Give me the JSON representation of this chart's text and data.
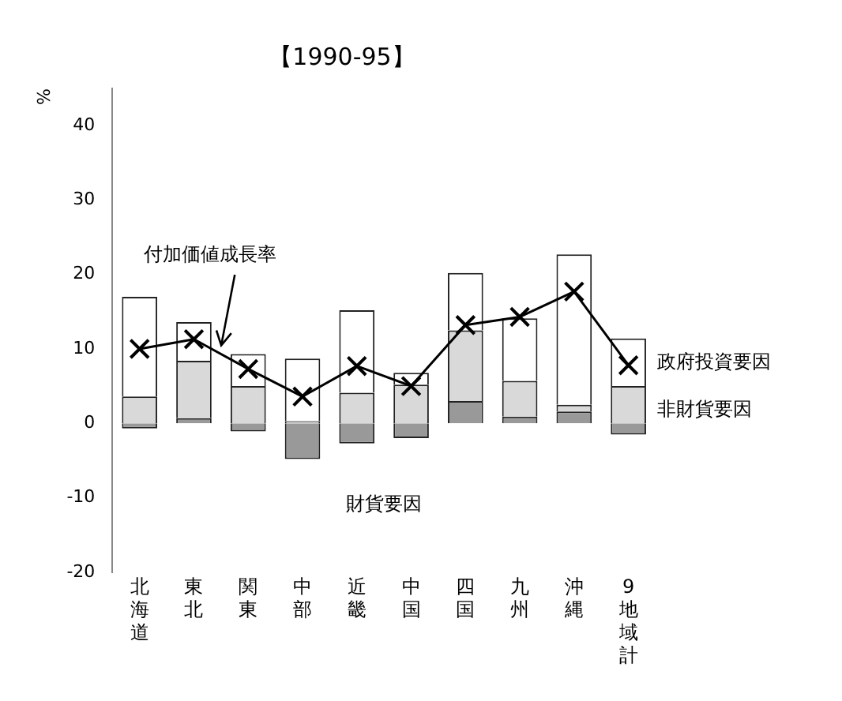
{
  "chart_data": {
    "type": "bar",
    "title": "【1990-95】",
    "ylabel": "%",
    "stacked": true,
    "categories": [
      "北海道",
      "東北",
      "関東",
      "中部",
      "近畿",
      "中国",
      "四国",
      "九州",
      "沖縄",
      "9地域計"
    ],
    "series": [
      {
        "name": "財貨要因",
        "color": "#999999",
        "values": [
          -0.7,
          0.7,
          -1.1,
          -4.8,
          -2.7,
          -2,
          3,
          0.9,
          1.6,
          -1.5
        ]
      },
      {
        "name": "非財貨要因",
        "color": "#d9d9d9",
        "values": [
          3.6,
          7.7,
          5,
          0.3,
          4.1,
          5.2,
          9.5,
          4.8,
          0.9,
          5
        ]
      },
      {
        "name": "政府投資要因",
        "color": "#ffffff",
        "values": [
          13.4,
          5.2,
          4.3,
          8.4,
          11.1,
          1.6,
          7.7,
          8.4,
          20.2,
          6.4
        ]
      },
      {
        "name": "付加価値成長率",
        "type": "line",
        "color": "#000000",
        "marker": "cross",
        "values": [
          10,
          11.3,
          7.3,
          3.6,
          7.7,
          5,
          13.2,
          14.3,
          17.7,
          7.8
        ]
      }
    ],
    "ylim": [
      -20,
      45
    ],
    "yticks": [
      -20,
      -10,
      0,
      10,
      20,
      30,
      40
    ],
    "grid": false,
    "legend": false
  }
}
